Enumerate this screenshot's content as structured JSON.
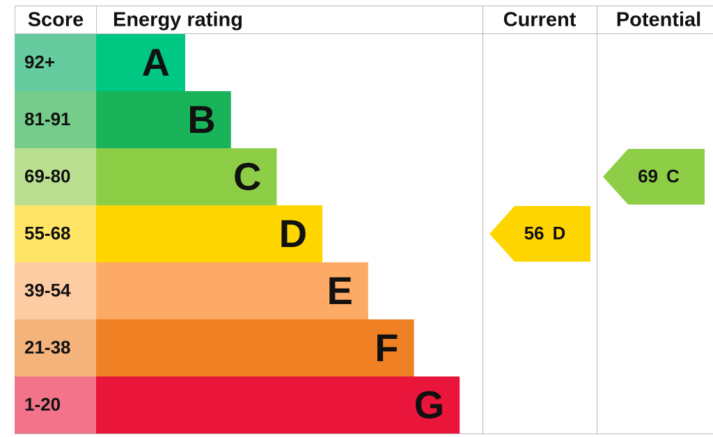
{
  "chart_data": {
    "type": "epc",
    "headers": {
      "score": "Score",
      "rating": "Energy rating",
      "current": "Current",
      "potential": "Potential"
    },
    "bands": [
      {
        "score": "92+",
        "letter": "A",
        "color": "#00c781",
        "score_color": "#66cc9f"
      },
      {
        "score": "81-91",
        "letter": "B",
        "color": "#19b459",
        "score_color": "#75cc8b"
      },
      {
        "score": "69-80",
        "letter": "C",
        "color": "#8dce46",
        "score_color": "#badf90"
      },
      {
        "score": "55-68",
        "letter": "D",
        "color": "#ffd500",
        "score_color": "#ffe566"
      },
      {
        "score": "39-54",
        "letter": "E",
        "color": "#fcaa65",
        "score_color": "#fdcca3"
      },
      {
        "score": "21-38",
        "letter": "F",
        "color": "#ef8023",
        "score_color": "#f5b37c"
      },
      {
        "score": "1-20",
        "letter": "G",
        "color": "#e9153b",
        "score_color": "#f2738a"
      }
    ],
    "current": {
      "value": 56,
      "letter": "D"
    },
    "potential": {
      "value": 69,
      "letter": "C"
    }
  }
}
